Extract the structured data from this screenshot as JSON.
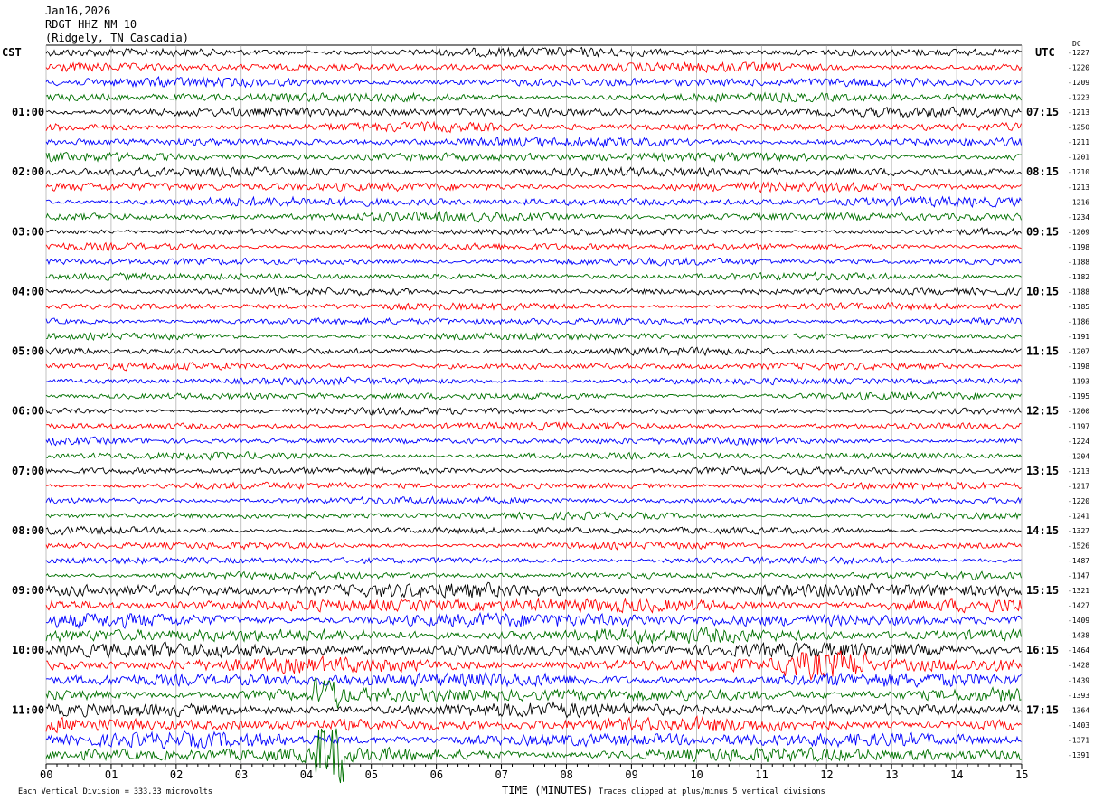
{
  "header": {
    "line1": "Jan16,2026",
    "line2": "RDGT HHZ NM 10",
    "line3": "(Ridgely, TN Cascadia)"
  },
  "chart_data": {
    "type": "line",
    "subtype": "helicorder",
    "left_timezone": "CST",
    "right_timezone": "UTC",
    "dc_header": "DC",
    "left_hour_labels": [
      "01:00",
      "02:00",
      "03:00",
      "04:00",
      "05:00",
      "06:00",
      "07:00",
      "08:00",
      "09:00",
      "10:00",
      "11:00"
    ],
    "right_hour_labels": [
      "07:15",
      "08:15",
      "09:15",
      "10:15",
      "11:15",
      "12:15",
      "13:15",
      "14:15",
      "15:15",
      "16:15",
      "17:15"
    ],
    "dc_offsets": [
      "-1227",
      "-1220",
      "-1209",
      "-1223",
      "-1213",
      "-1250",
      "-1211",
      "-1201",
      "-1210",
      "-1213",
      "-1216",
      "-1234",
      "-1209",
      "-1198",
      "-1188",
      "-1182",
      "-1188",
      "-1185",
      "-1186",
      "-1191",
      "-1207",
      "-1198",
      "-1193",
      "-1195",
      "-1200",
      "-1197",
      "-1224",
      "-1204",
      "-1213",
      "-1217",
      "-1220",
      "-1241",
      "-1327",
      "-1526",
      "-1487",
      "-1147",
      "-1321",
      "-1427",
      "-1409",
      "-1438",
      "-1464",
      "-1428",
      "-1439",
      "-1393",
      "-1364",
      "-1403",
      "-1371",
      "-1391"
    ],
    "trace_colors": [
      "#000000",
      "#ff0000",
      "#0000ff",
      "#007000"
    ],
    "x_ticks": [
      "00",
      "01",
      "02",
      "03",
      "04",
      "05",
      "06",
      "07",
      "08",
      "09",
      "10",
      "11",
      "12",
      "13",
      "14",
      "15"
    ],
    "xlabel": "TIME (MINUTES)",
    "xlim": [
      0,
      15
    ],
    "minutes_per_line": 15,
    "grid": true
  },
  "footer": {
    "scale": "Each Vertical Division =  333.33 microvolts",
    "clip_note": "Traces clipped at plus/minus 5 vertical divisions"
  }
}
